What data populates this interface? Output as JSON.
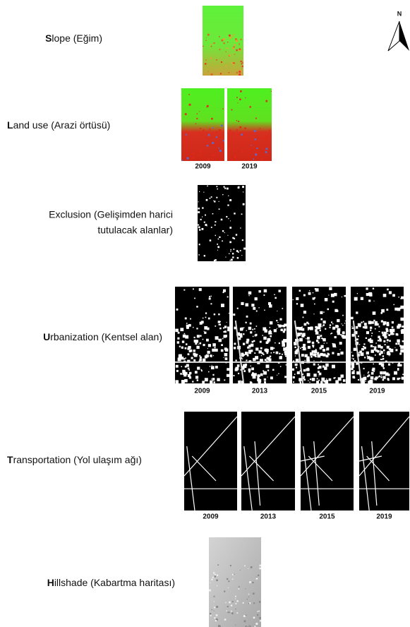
{
  "north": "N",
  "rows": [
    {
      "initial": "S",
      "text": "lope (Eğim)"
    },
    {
      "initial": "L",
      "text": "and use (Arazi örtüsü)",
      "years": [
        "2009",
        "2019"
      ]
    },
    {
      "lines": [
        "Exclusion (Gelişimden harici",
        "tutulacak alanlar)"
      ]
    },
    {
      "initial": "U",
      "text": "rbanization (Kentsel alan)",
      "years": [
        "2009",
        "2013",
        "2015",
        "2019"
      ]
    },
    {
      "initial": "T",
      "text": "ransportation (Yol ulaşım ağı)",
      "years": [
        "2009",
        "2013",
        "2015",
        "2019"
      ]
    },
    {
      "initial": "H",
      "text": "illshade (Kabartma haritası)"
    }
  ]
}
